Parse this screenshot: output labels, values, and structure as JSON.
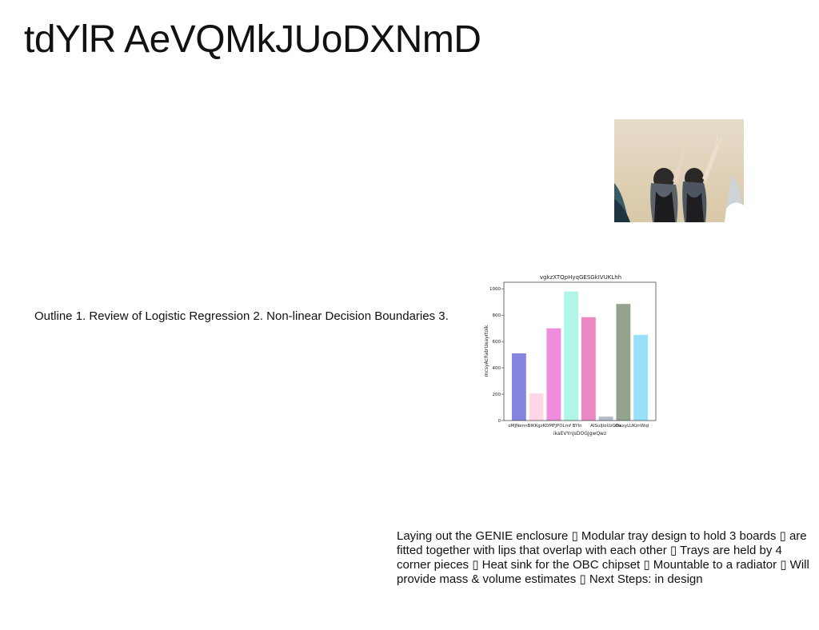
{
  "slide": {
    "title": "tdYlR AeVQMkJUoDXNmD",
    "outline_text": "Outline 1. Review of Logistic Regression 2. Non-linear Decision Boundaries 3.",
    "notes_text": "Laying out the GENIE enclosure ▯ Modular tray design to hold 3 boards ▯ are fitted together with lips that overlap with each other ▯ Trays are held by 4 corner pieces ▯ Heat sink for the OBC chipset ▯ Mountable to a radiator ▯ Will provide mass & volume estimates ▯ Next Steps: in design"
  },
  "chart_data": {
    "type": "bar",
    "title": "vgkzXTQpHyqGESGkIVUKLhh",
    "xlabel": "ikaEVYnJsDOGJgwQwz",
    "ylabel": "mcsyAcRatrUeayrtoik",
    "ylim": [
      0,
      1050
    ],
    "yticks": [
      0,
      200,
      400,
      600,
      800,
      1000
    ],
    "categories": [
      "oMJNenn",
      "BIKKgzK",
      "DMFJPOL",
      "mf BYIn",
      "AlSuIJ",
      "ioUzGDx",
      "thsxyLU",
      "KznWql"
    ],
    "x_tick_labels_shown": [
      "oMJNennBIKKgzKDMFJPOLmf BYIn",
      "AlSuIJioUzGDx",
      "thsxyLUKznWql"
    ],
    "values": [
      510,
      205,
      700,
      980,
      785,
      30,
      885,
      650
    ],
    "colors": [
      "#8585e0",
      "#ffd6e6",
      "#f08cdc",
      "#b0f5e6",
      "#eb87c3",
      "#b4bccc",
      "#92a58c",
      "#98e0f8"
    ],
    "grid": false,
    "legend": "none"
  }
}
